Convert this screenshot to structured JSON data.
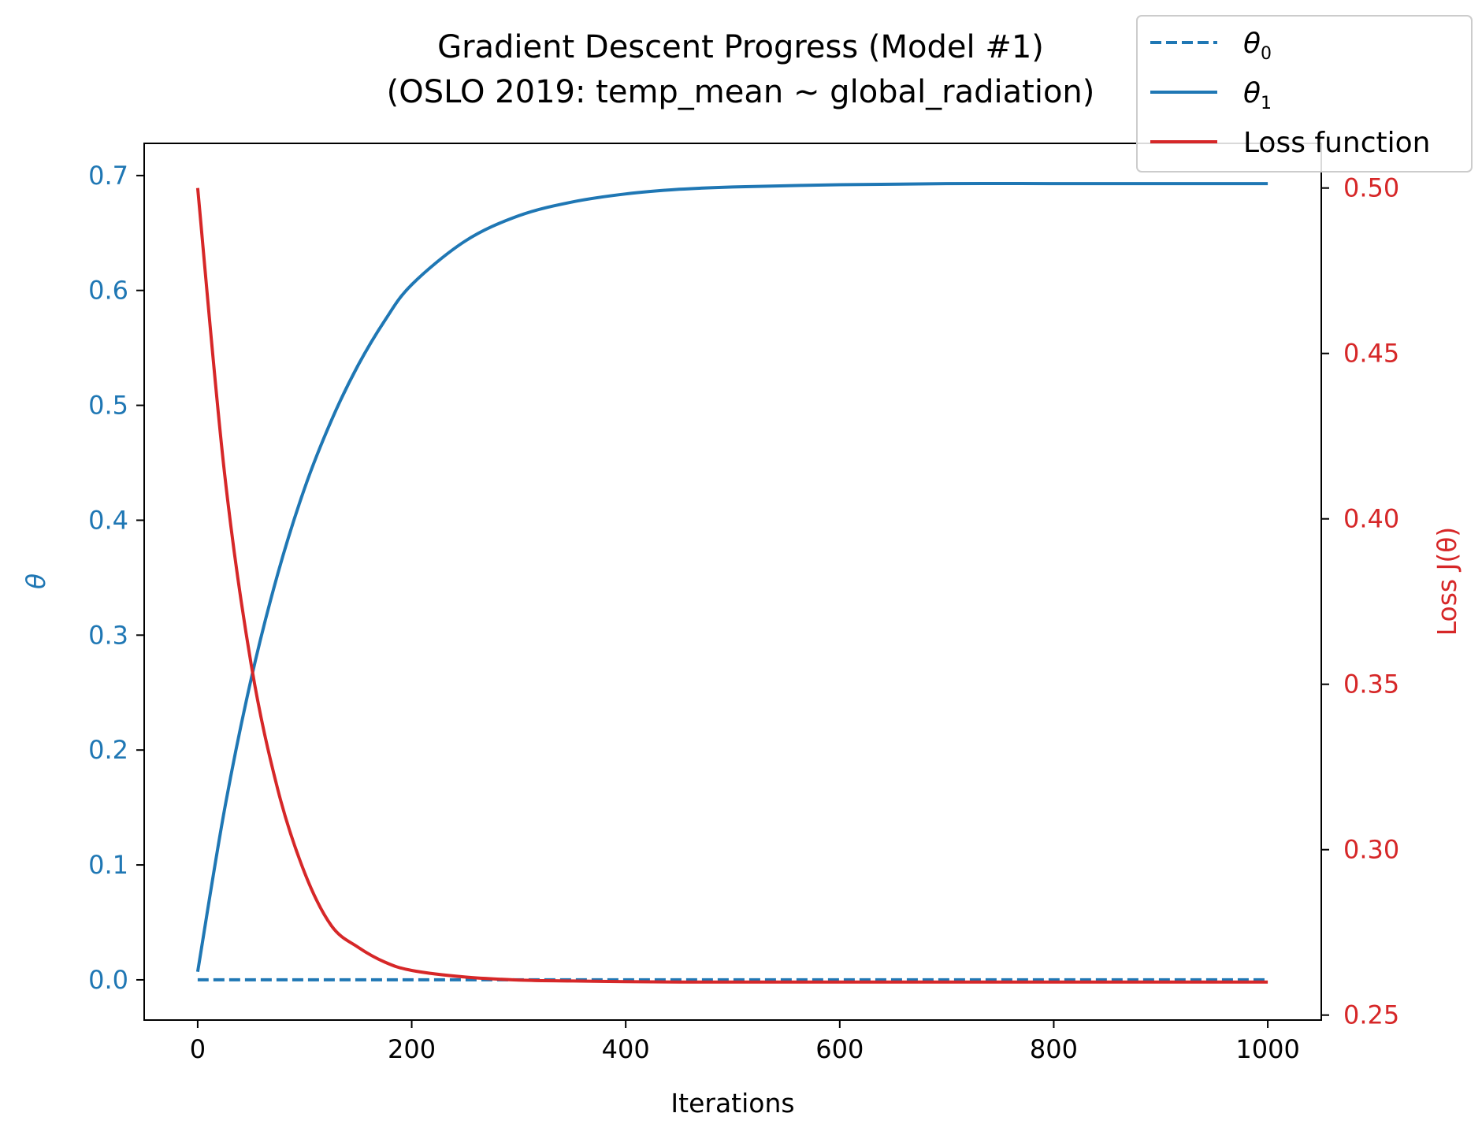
{
  "chart_data": {
    "type": "line",
    "title": "Gradient Descent Progress (Model #1)",
    "subtitle": "(OSLO 2019: temp_mean ~ global_radiation)",
    "xlabel": "Iterations",
    "ylabel_left": "θ",
    "ylabel_right": "Loss J(θ)",
    "xlim": [
      -50,
      1050
    ],
    "ylim_left": [
      -0.035,
      0.728
    ],
    "ylim_right": [
      0.2485,
      0.5135
    ],
    "x_ticks": [
      0,
      200,
      400,
      600,
      800,
      1000
    ],
    "y_ticks_left": [
      0.0,
      0.1,
      0.2,
      0.3,
      0.4,
      0.5,
      0.6,
      0.7
    ],
    "y_ticks_right": [
      0.25,
      0.3,
      0.35,
      0.4,
      0.45,
      0.5
    ],
    "legend_position": "top-right",
    "colors": {
      "theta": "#1f77b4",
      "loss": "#d62728"
    },
    "series": [
      {
        "name": "θ0",
        "axis": "left",
        "style": "dashed",
        "color": "#1f77b4",
        "x": [
          0,
          100,
          200,
          300,
          400,
          500,
          600,
          700,
          800,
          900,
          1000
        ],
        "values": [
          0.0,
          0.0,
          0.0,
          0.0,
          0.0,
          0.0,
          0.0,
          0.0,
          0.0,
          0.0,
          0.0
        ]
      },
      {
        "name": "θ1",
        "axis": "left",
        "style": "solid",
        "color": "#1f77b4",
        "x": [
          0,
          25,
          50,
          75,
          100,
          125,
          150,
          175,
          200,
          250,
          300,
          350,
          400,
          450,
          500,
          600,
          700,
          800,
          900,
          1000
        ],
        "values": [
          0.007,
          0.148,
          0.262,
          0.354,
          0.428,
          0.487,
          0.535,
          0.574,
          0.605,
          0.643,
          0.665,
          0.677,
          0.684,
          0.688,
          0.69,
          0.692,
          0.693,
          0.693,
          0.693,
          0.693
        ]
      },
      {
        "name": "Loss function",
        "axis": "right",
        "style": "solid",
        "color": "#d62728",
        "x": [
          0,
          25,
          50,
          75,
          100,
          125,
          150,
          175,
          200,
          250,
          300,
          350,
          400,
          450,
          500,
          600,
          700,
          800,
          900,
          1000
        ],
        "values": [
          0.5,
          0.414,
          0.356,
          0.318,
          0.293,
          0.277,
          0.2705,
          0.266,
          0.2635,
          0.2615,
          0.2606,
          0.2603,
          0.2601,
          0.26,
          0.26,
          0.26,
          0.26,
          0.26,
          0.26,
          0.26
        ]
      }
    ]
  }
}
